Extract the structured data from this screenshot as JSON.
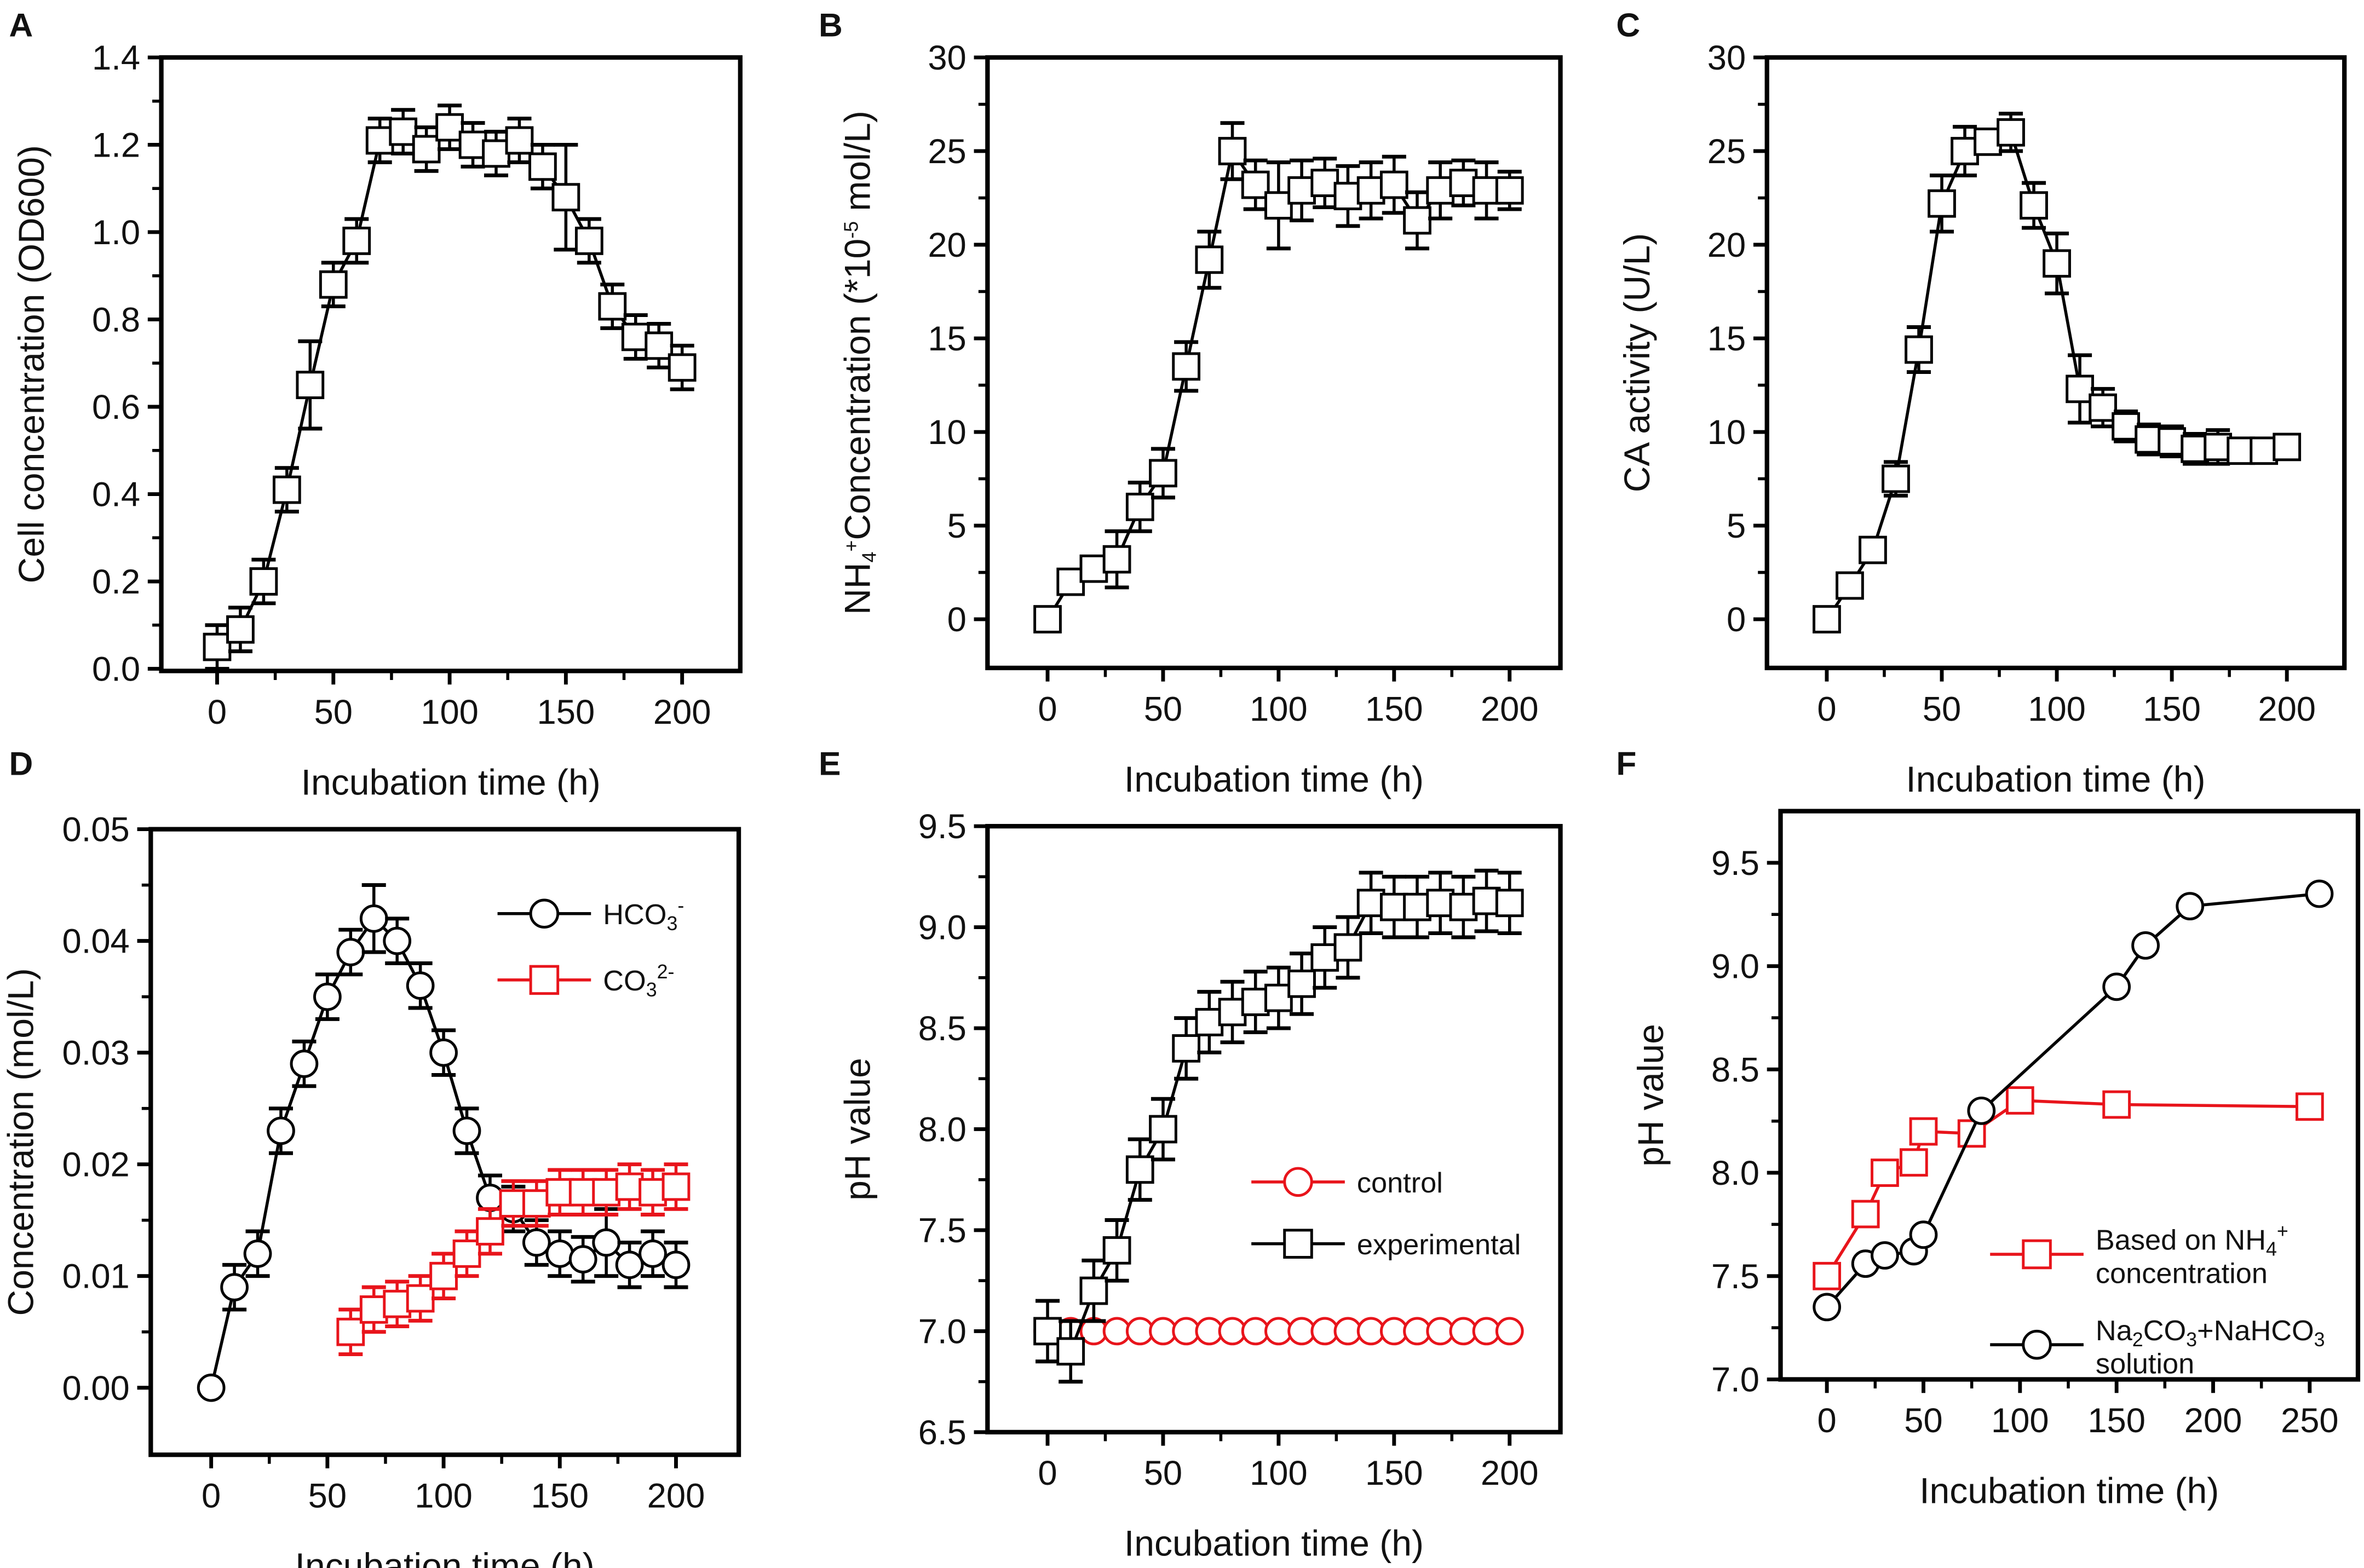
{
  "chart_data": [
    {
      "panel": "A",
      "type": "line",
      "xlabel": "Incubation time (h)",
      "ylabel_parts": [
        "Cell concentration (OD",
        "600",
        ")"
      ],
      "xlim": [
        -24,
        225
      ],
      "ylim": [
        -0.005,
        1.4
      ],
      "xticks": [
        0,
        50,
        100,
        150,
        200
      ],
      "xtick_labels": [
        "0",
        "50",
        "100",
        "150",
        "200"
      ],
      "yticks": [
        0,
        0.2,
        0.4,
        0.6,
        0.8,
        1.0,
        1.2,
        1.4
      ],
      "ytick_labels": [
        "0.0",
        "0.2",
        "0.4",
        "0.6",
        "0.8",
        "1.0",
        "1.2",
        "1.4"
      ],
      "series": [
        {
          "name": "Cell concentration",
          "marker": "square",
          "color": "#000000",
          "x": [
            0,
            10,
            20,
            30,
            40,
            50,
            60,
            70,
            80,
            90,
            100,
            110,
            120,
            130,
            140,
            150,
            160,
            170,
            180,
            190,
            200
          ],
          "y": [
            0.05,
            0.09,
            0.2,
            0.41,
            0.65,
            0.88,
            0.98,
            1.21,
            1.23,
            1.19,
            1.24,
            1.2,
            1.18,
            1.21,
            1.15,
            1.08,
            0.98,
            0.83,
            0.76,
            0.74,
            0.69
          ],
          "err": [
            0.05,
            0.05,
            0.05,
            0.05,
            0.1,
            0.05,
            0.05,
            0.05,
            0.05,
            0.05,
            0.05,
            0.05,
            0.05,
            0.05,
            0.05,
            0.12,
            0.05,
            0.05,
            0.05,
            0.05,
            0.05
          ]
        }
      ]
    },
    {
      "panel": "B",
      "type": "line",
      "xlabel": "Incubation time (h)",
      "ylabel_parts": [
        "NH",
        "4",
        "+",
        "Concentration (*10",
        "-5",
        " mol/L)"
      ],
      "xlim": [
        -26,
        222
      ],
      "ylim": [
        -2.6,
        30
      ],
      "xticks": [
        0,
        50,
        100,
        150,
        200
      ],
      "xtick_labels": [
        "0",
        "50",
        "100",
        "150",
        "200"
      ],
      "yticks": [
        0,
        5,
        10,
        15,
        20,
        25,
        30
      ],
      "ytick_labels": [
        "0",
        "5",
        "10",
        "15",
        "20",
        "25",
        "30"
      ],
      "series": [
        {
          "name": "NH4+ concentration",
          "marker": "square",
          "color": "#000000",
          "x": [
            0,
            10,
            20,
            30,
            40,
            50,
            60,
            70,
            80,
            90,
            100,
            110,
            120,
            130,
            140,
            150,
            160,
            170,
            180,
            190,
            200
          ],
          "y": [
            0,
            2.0,
            2.7,
            3.2,
            6.0,
            7.8,
            13.5,
            19.2,
            25.0,
            23.2,
            22.1,
            22.9,
            23.3,
            22.6,
            22.9,
            23.2,
            21.3,
            22.9,
            23.3,
            22.9,
            22.9
          ],
          "err": [
            0.3,
            0.5,
            0.6,
            1.5,
            1.3,
            1.3,
            1.3,
            1.5,
            1.5,
            1.3,
            2.3,
            1.6,
            1.3,
            1.6,
            1.5,
            1.5,
            1.5,
            1.5,
            1.2,
            1.5,
            1.0
          ]
        }
      ]
    },
    {
      "panel": "C",
      "type": "line",
      "xlabel": "Incubation time (h)",
      "ylabel_parts": [
        "CA activity (U/L)"
      ],
      "xlim": [
        -26,
        225
      ],
      "ylim": [
        -2.6,
        30
      ],
      "xticks": [
        0,
        50,
        100,
        150,
        200
      ],
      "xtick_labels": [
        "0",
        "50",
        "100",
        "150",
        "200"
      ],
      "yticks": [
        0,
        5,
        10,
        15,
        20,
        25,
        30
      ],
      "ytick_labels": [
        "0",
        "5",
        "10",
        "15",
        "20",
        "25",
        "30"
      ],
      "series": [
        {
          "name": "CA activity",
          "marker": "square",
          "color": "#000000",
          "x": [
            0,
            10,
            20,
            30,
            40,
            50,
            60,
            70,
            80,
            90,
            100,
            110,
            120,
            130,
            140,
            150,
            160,
            170,
            180,
            190,
            200
          ],
          "y": [
            0,
            1.8,
            3.7,
            7.5,
            14.4,
            22.2,
            25.0,
            25.5,
            26.0,
            22.1,
            19.0,
            12.3,
            11.3,
            10.3,
            9.6,
            9.5,
            9.1,
            9.2,
            9.0,
            9.0,
            9.2
          ],
          "err": [
            0.3,
            0.5,
            0.4,
            0.9,
            1.2,
            1.5,
            1.3,
            0.6,
            1.0,
            1.2,
            1.6,
            1.8,
            1.0,
            0.8,
            0.8,
            0.8,
            0.8,
            0.9,
            0.6,
            0.5,
            0.6
          ]
        }
      ]
    },
    {
      "panel": "D",
      "type": "line",
      "xlabel": "Incubation time (h)",
      "ylabel_parts": [
        "Concentration (mol/L)"
      ],
      "xlim": [
        -26,
        227
      ],
      "ylim": [
        -0.006,
        0.05
      ],
      "xticks": [
        0,
        50,
        100,
        150,
        200
      ],
      "xtick_labels": [
        "0",
        "50",
        "100",
        "150",
        "200"
      ],
      "yticks": [
        0,
        0.01,
        0.02,
        0.03,
        0.04,
        0.05
      ],
      "ytick_labels": [
        "0.00",
        "0.01",
        "0.02",
        "0.03",
        "0.04",
        "0.05"
      ],
      "legend": "top-right",
      "series": [
        {
          "name": "HCO3-",
          "label_parts": [
            "HCO",
            "3",
            "-"
          ],
          "marker": "circle",
          "color": "#000000",
          "x": [
            0,
            10,
            20,
            30,
            40,
            50,
            60,
            70,
            80,
            90,
            100,
            110,
            120,
            130,
            140,
            150,
            160,
            170,
            180,
            190,
            200
          ],
          "y": [
            0,
            0.009,
            0.012,
            0.023,
            0.029,
            0.035,
            0.039,
            0.042,
            0.04,
            0.036,
            0.03,
            0.023,
            0.017,
            0.016,
            0.013,
            0.012,
            0.0115,
            0.013,
            0.011,
            0.012,
            0.011
          ],
          "err": [
            0,
            0.002,
            0.002,
            0.002,
            0.002,
            0.002,
            0.002,
            0.003,
            0.002,
            0.002,
            0.002,
            0.002,
            0.002,
            0.002,
            0.002,
            0.002,
            0.002,
            0.003,
            0.002,
            0.002,
            0.002
          ]
        },
        {
          "name": "CO3 2-",
          "label_parts": [
            "CO",
            "3",
            "2-"
          ],
          "marker": "square",
          "color": "#e8141b",
          "x": [
            60,
            70,
            80,
            90,
            100,
            110,
            120,
            130,
            140,
            150,
            160,
            170,
            180,
            190,
            200
          ],
          "y": [
            0.005,
            0.007,
            0.0075,
            0.008,
            0.01,
            0.012,
            0.014,
            0.0165,
            0.0165,
            0.0175,
            0.0175,
            0.0175,
            0.018,
            0.0175,
            0.018
          ],
          "err": [
            0.002,
            0.002,
            0.002,
            0.002,
            0.002,
            0.002,
            0.002,
            0.002,
            0.002,
            0.002,
            0.002,
            0.002,
            0.002,
            0.002,
            0.002
          ]
        }
      ]
    },
    {
      "panel": "E",
      "type": "line",
      "xlabel": "Incubation time (h)",
      "ylabel_parts": [
        "pH value"
      ],
      "xlim": [
        -26,
        222
      ],
      "ylim": [
        6.5,
        9.5
      ],
      "xticks": [
        0,
        50,
        100,
        150,
        200
      ],
      "xtick_labels": [
        "0",
        "50",
        "100",
        "150",
        "200"
      ],
      "yticks": [
        6.5,
        7.0,
        7.5,
        8.0,
        8.5,
        9.0,
        9.5
      ],
      "ytick_labels": [
        "6.5",
        "7.0",
        "7.5",
        "8.0",
        "8.5",
        "9.0",
        "9.5"
      ],
      "legend": "center-right",
      "series": [
        {
          "name": "control",
          "label_parts": [
            "control"
          ],
          "marker": "circle",
          "color": "#e8141b",
          "x": [
            0,
            10,
            20,
            30,
            40,
            50,
            60,
            70,
            80,
            90,
            100,
            110,
            120,
            130,
            140,
            150,
            160,
            170,
            180,
            190,
            200
          ],
          "y": [
            7,
            7,
            7,
            7,
            7,
            7,
            7,
            7,
            7,
            7,
            7,
            7,
            7,
            7,
            7,
            7,
            7,
            7,
            7,
            7,
            7
          ]
        },
        {
          "name": "experimental",
          "label_parts": [
            "experimental"
          ],
          "marker": "square",
          "color": "#000000",
          "x": [
            0,
            10,
            20,
            30,
            40,
            50,
            60,
            70,
            80,
            90,
            100,
            110,
            120,
            130,
            140,
            150,
            160,
            170,
            180,
            190,
            200
          ],
          "y": [
            7.0,
            6.9,
            7.2,
            7.4,
            7.8,
            8.0,
            8.4,
            8.53,
            8.58,
            8.63,
            8.65,
            8.72,
            8.85,
            8.9,
            9.12,
            9.1,
            9.1,
            9.12,
            9.1,
            9.13,
            9.12
          ],
          "err": [
            0.15,
            0.15,
            0.15,
            0.15,
            0.15,
            0.15,
            0.15,
            0.15,
            0.15,
            0.15,
            0.15,
            0.15,
            0.15,
            0.15,
            0.15,
            0.15,
            0.15,
            0.15,
            0.15,
            0.15,
            0.15
          ]
        }
      ]
    },
    {
      "panel": "F",
      "type": "line",
      "xlabel": "Incubation time (h)",
      "ylabel_parts": [
        "pH value"
      ],
      "xlim": [
        -24,
        275
      ],
      "ylim": [
        7.0,
        9.75
      ],
      "xticks": [
        0,
        50,
        100,
        150,
        200,
        250
      ],
      "xtick_labels": [
        "0",
        "50",
        "100",
        "150",
        "200",
        "250"
      ],
      "yticks": [
        7.0,
        7.5,
        8.0,
        8.5,
        9.0,
        9.5
      ],
      "ytick_labels": [
        "7.0",
        "7.5",
        "8.0",
        "8.5",
        "9.0",
        "9.5"
      ],
      "legend": "bottom-right",
      "series": [
        {
          "name": "Based on NH4+ concentration",
          "label_parts": [
            "Based on NH",
            "4",
            "+",
            "concentration"
          ],
          "marker": "square",
          "color": "#e8141b",
          "x": [
            0,
            20,
            30,
            45,
            50,
            75,
            100,
            150,
            250
          ],
          "y": [
            7.5,
            7.8,
            8.0,
            8.05,
            8.2,
            8.19,
            8.35,
            8.33,
            8.32
          ]
        },
        {
          "name": "Na2CO3+NaHCO3 solution",
          "label_parts": [
            "Na",
            "2",
            "CO",
            "3",
            "+NaHCO",
            "3",
            "solution"
          ],
          "marker": "circle",
          "color": "#000000",
          "x": [
            0,
            20,
            30,
            45,
            50,
            80,
            150,
            165,
            188,
            255
          ],
          "y": [
            7.35,
            7.56,
            7.6,
            7.62,
            7.7,
            8.3,
            8.9,
            9.1,
            9.29,
            9.35
          ]
        }
      ]
    }
  ]
}
